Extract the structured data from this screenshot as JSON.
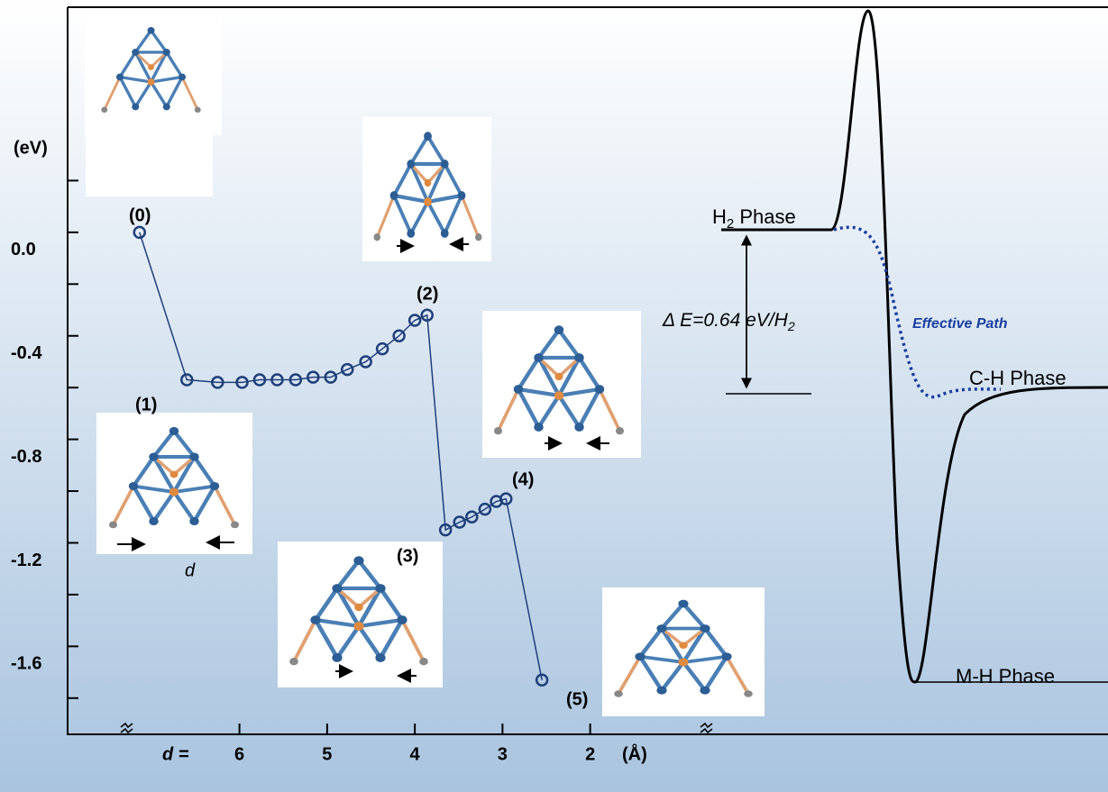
{
  "chart_data": {
    "type": "scatter",
    "y_label": "(eV)",
    "x_label": "d =",
    "x_unit": "(Å)",
    "x": [
      7.14,
      6.6,
      6.25,
      5.97,
      5.77,
      5.57,
      5.36,
      5.16,
      4.96,
      4.77,
      4.56,
      4.37,
      4.18,
      4.0,
      3.86,
      3.65,
      3.49,
      3.35,
      3.2,
      3.07,
      2.96,
      2.55
    ],
    "values": [
      0.0,
      -0.57,
      -0.58,
      -0.58,
      -0.57,
      -0.57,
      -0.57,
      -0.56,
      -0.56,
      -0.53,
      -0.5,
      -0.45,
      -0.4,
      -0.34,
      -0.32,
      -1.15,
      -1.12,
      -1.1,
      -1.07,
      -1.04,
      -1.03,
      -1.73
    ],
    "color": "#1f3f7a",
    "xlim": [
      7.96,
      0.68
    ],
    "xticks": [
      6,
      5,
      4,
      3,
      2
    ],
    "ylim": [
      -1.94,
      0.87
    ],
    "yticks": [
      {
        "value": 0,
        "label": "0.0"
      },
      -0.4,
      -0.8,
      -1.2,
      -1.6
    ],
    "minor_yticks": [
      0.2,
      -0.2,
      -0.6,
      -1.0,
      -1.4,
      -1.8
    ],
    "state_labels": [
      "(0)",
      "(1)",
      "(2)",
      "(3)",
      "(4)",
      "(5)"
    ],
    "distance_symbol": "d",
    "diagram": {
      "h2_phase": [
        "H",
        "2",
        " Phase"
      ],
      "ch_phase": "C-H Phase",
      "mh_phase": "M-H Phase",
      "delta_e": [
        "Δ E=0.64 eV/H",
        "2"
      ],
      "effective_path": "Effective Path"
    }
  }
}
